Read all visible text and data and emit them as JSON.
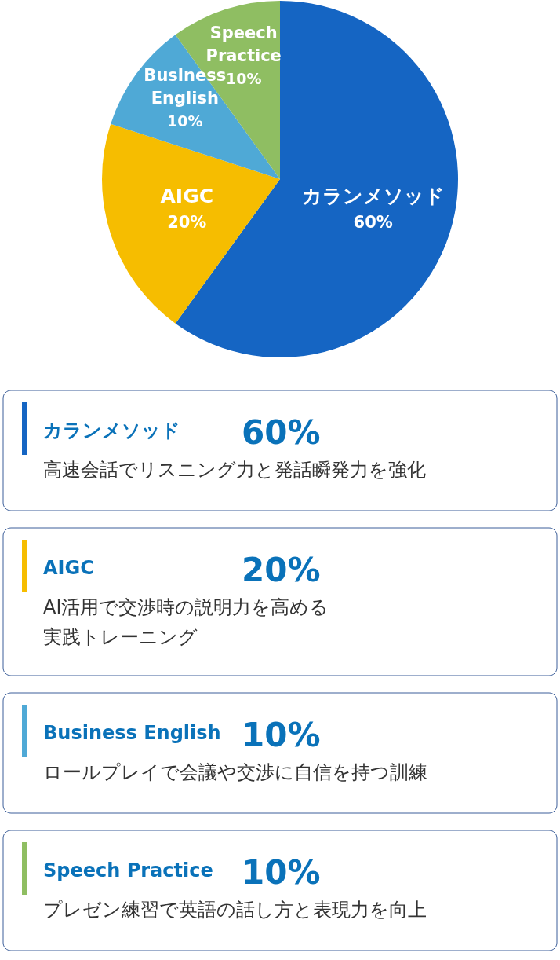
{
  "chart_data": {
    "type": "pie",
    "categories": [
      "カランメソッド",
      "AIGC",
      "Business English",
      "Speech Practice"
    ],
    "values": [
      60,
      20,
      10,
      10
    ],
    "value_labels": [
      "60%",
      "20%",
      "10%",
      "10%"
    ],
    "colors": [
      "#1565c3",
      "#f6bd00",
      "#4fa9d6",
      "#8fbe62"
    ],
    "annotations": [
      "高速会話でリスニング力と発話瞬発力を強化",
      "AI活用で交渉時の説明力を高める実践トレーニング",
      "ロールプレイで会議や交渉に自信を持つ訓練",
      "プレゼン練習で英語の話し方と表現力を向上"
    ]
  }
}
